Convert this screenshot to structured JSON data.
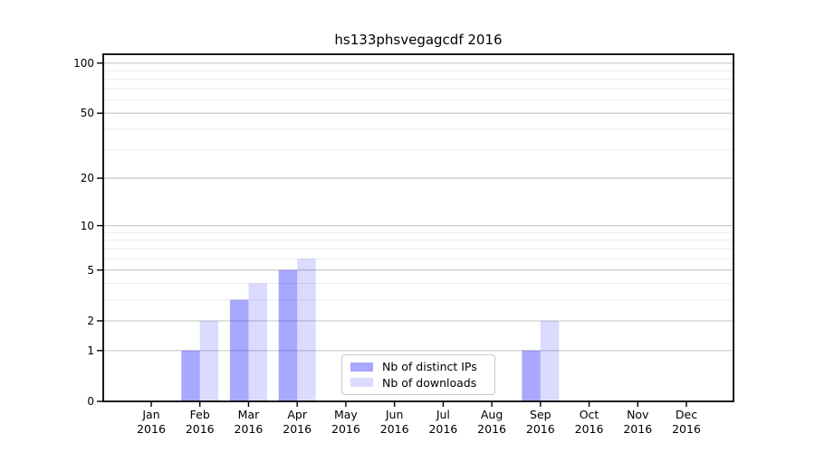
{
  "chart_data": {
    "type": "bar",
    "title": "hs133phsvegagcdf 2016",
    "x": {
      "categories": [
        "Jan",
        "Feb",
        "Mar",
        "Apr",
        "May",
        "Jun",
        "Jul",
        "Aug",
        "Sep",
        "Oct",
        "Nov",
        "Dec"
      ],
      "year_label": "2016"
    },
    "y": {
      "scale": "log1p",
      "major_ticks": [
        0,
        1,
        2,
        5,
        10,
        20,
        50,
        100
      ],
      "minor_ticks": [
        3,
        4,
        6,
        7,
        8,
        9,
        30,
        40,
        60,
        70,
        80,
        90
      ],
      "max": 113
    },
    "grid": {
      "major_color": "#c9c9c9",
      "minor_color": "#ebebeb"
    },
    "series": [
      {
        "name": "Nb of distinct IPs",
        "color": "rgba(0,0,255,0.34)",
        "values": [
          0,
          1,
          3,
          5,
          0,
          0,
          0,
          0,
          1,
          0,
          0,
          0
        ]
      },
      {
        "name": "Nb of downloads",
        "color": "rgba(0,0,255,0.14)",
        "values": [
          0,
          2,
          4,
          6,
          0,
          0,
          0,
          0,
          2,
          0,
          0,
          0
        ]
      }
    ],
    "legend_position": "lower center",
    "spine_color": "#000000"
  }
}
